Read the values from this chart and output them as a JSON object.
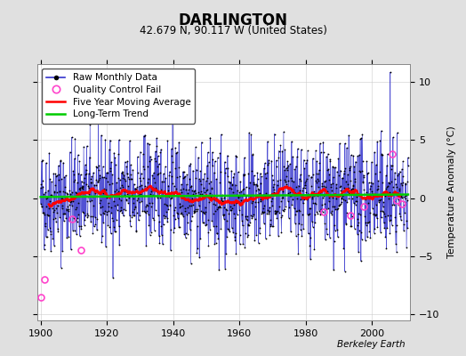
{
  "title": "DARLINGTON",
  "subtitle": "42.679 N, 90.117 W (United States)",
  "ylabel": "Temperature Anomaly (°C)",
  "credit": "Berkeley Earth",
  "year_start": 1900,
  "year_end": 2011,
  "ylim": [
    -10.5,
    11.5
  ],
  "yticks": [
    -10,
    -5,
    0,
    5,
    10
  ],
  "background_color": "#e0e0e0",
  "plot_bg_color": "#ffffff",
  "line_color": "#3333cc",
  "marker_color": "#000000",
  "ma_color": "#ff0000",
  "trend_color": "#00cc00",
  "qc_color": "#ff44cc",
  "legend_entries": [
    "Raw Monthly Data",
    "Quality Control Fail",
    "Five Year Moving Average",
    "Long-Term Trend"
  ],
  "qc_fail_t": [
    1900.1,
    1901.3,
    1909.6,
    1912.3,
    1985.4,
    1993.4,
    1997.5,
    2006.2,
    2007.4,
    2009.0
  ],
  "qc_fail_v": [
    -8.5,
    -7.0,
    -1.8,
    -4.5,
    -1.2,
    -1.5,
    -0.7,
    3.8,
    -0.2,
    -0.5
  ]
}
